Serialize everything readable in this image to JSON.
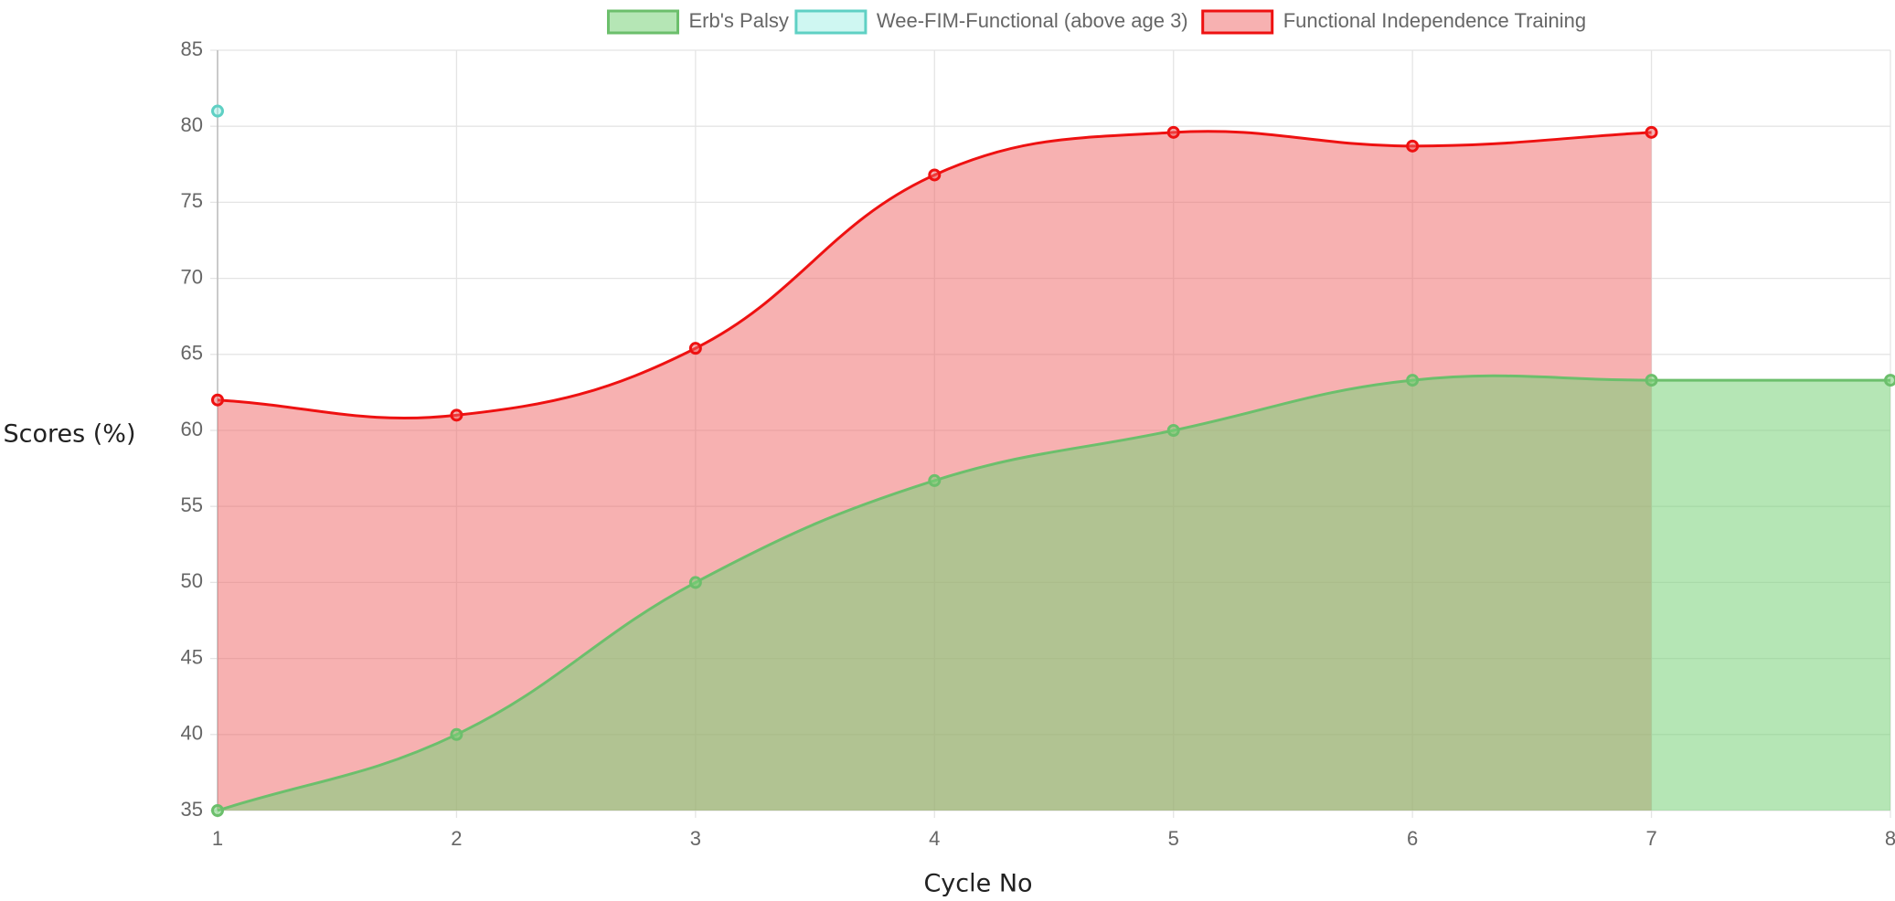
{
  "chart_data": {
    "type": "line",
    "x_label": "Cycle No",
    "y_label": "Scores (%)",
    "x": [
      1,
      2,
      3,
      4,
      5,
      6,
      7,
      8
    ],
    "xlim": [
      1,
      8
    ],
    "xticks": [
      1,
      2,
      3,
      4,
      5,
      6,
      7,
      8
    ],
    "ylim": [
      35,
      85
    ],
    "yticks": [
      35,
      40,
      45,
      50,
      55,
      60,
      65,
      70,
      75,
      80,
      85
    ],
    "grid": true,
    "fill": true,
    "legend": "top",
    "series": [
      {
        "name": "Erb's Palsy",
        "color": "#6cbf6c",
        "fill_color": "rgba(120,210,120,0.55)",
        "values": [
          35,
          40,
          50,
          56.7,
          60,
          63.3,
          63.3,
          63.3
        ]
      },
      {
        "name": "Wee-FIM-Functional (above age 3)",
        "color": "#5fd0c4",
        "fill_color": "rgba(160,240,230,0.5)",
        "values": [
          81,
          null,
          null,
          null,
          null,
          null,
          null,
          null
        ]
      },
      {
        "name": "Functional Independence Training",
        "color": "#ee1111",
        "fill_color": "rgba(240,100,100,0.5)",
        "values": [
          62,
          61,
          65.4,
          76.8,
          79.6,
          78.7,
          79.6,
          null
        ]
      }
    ]
  }
}
